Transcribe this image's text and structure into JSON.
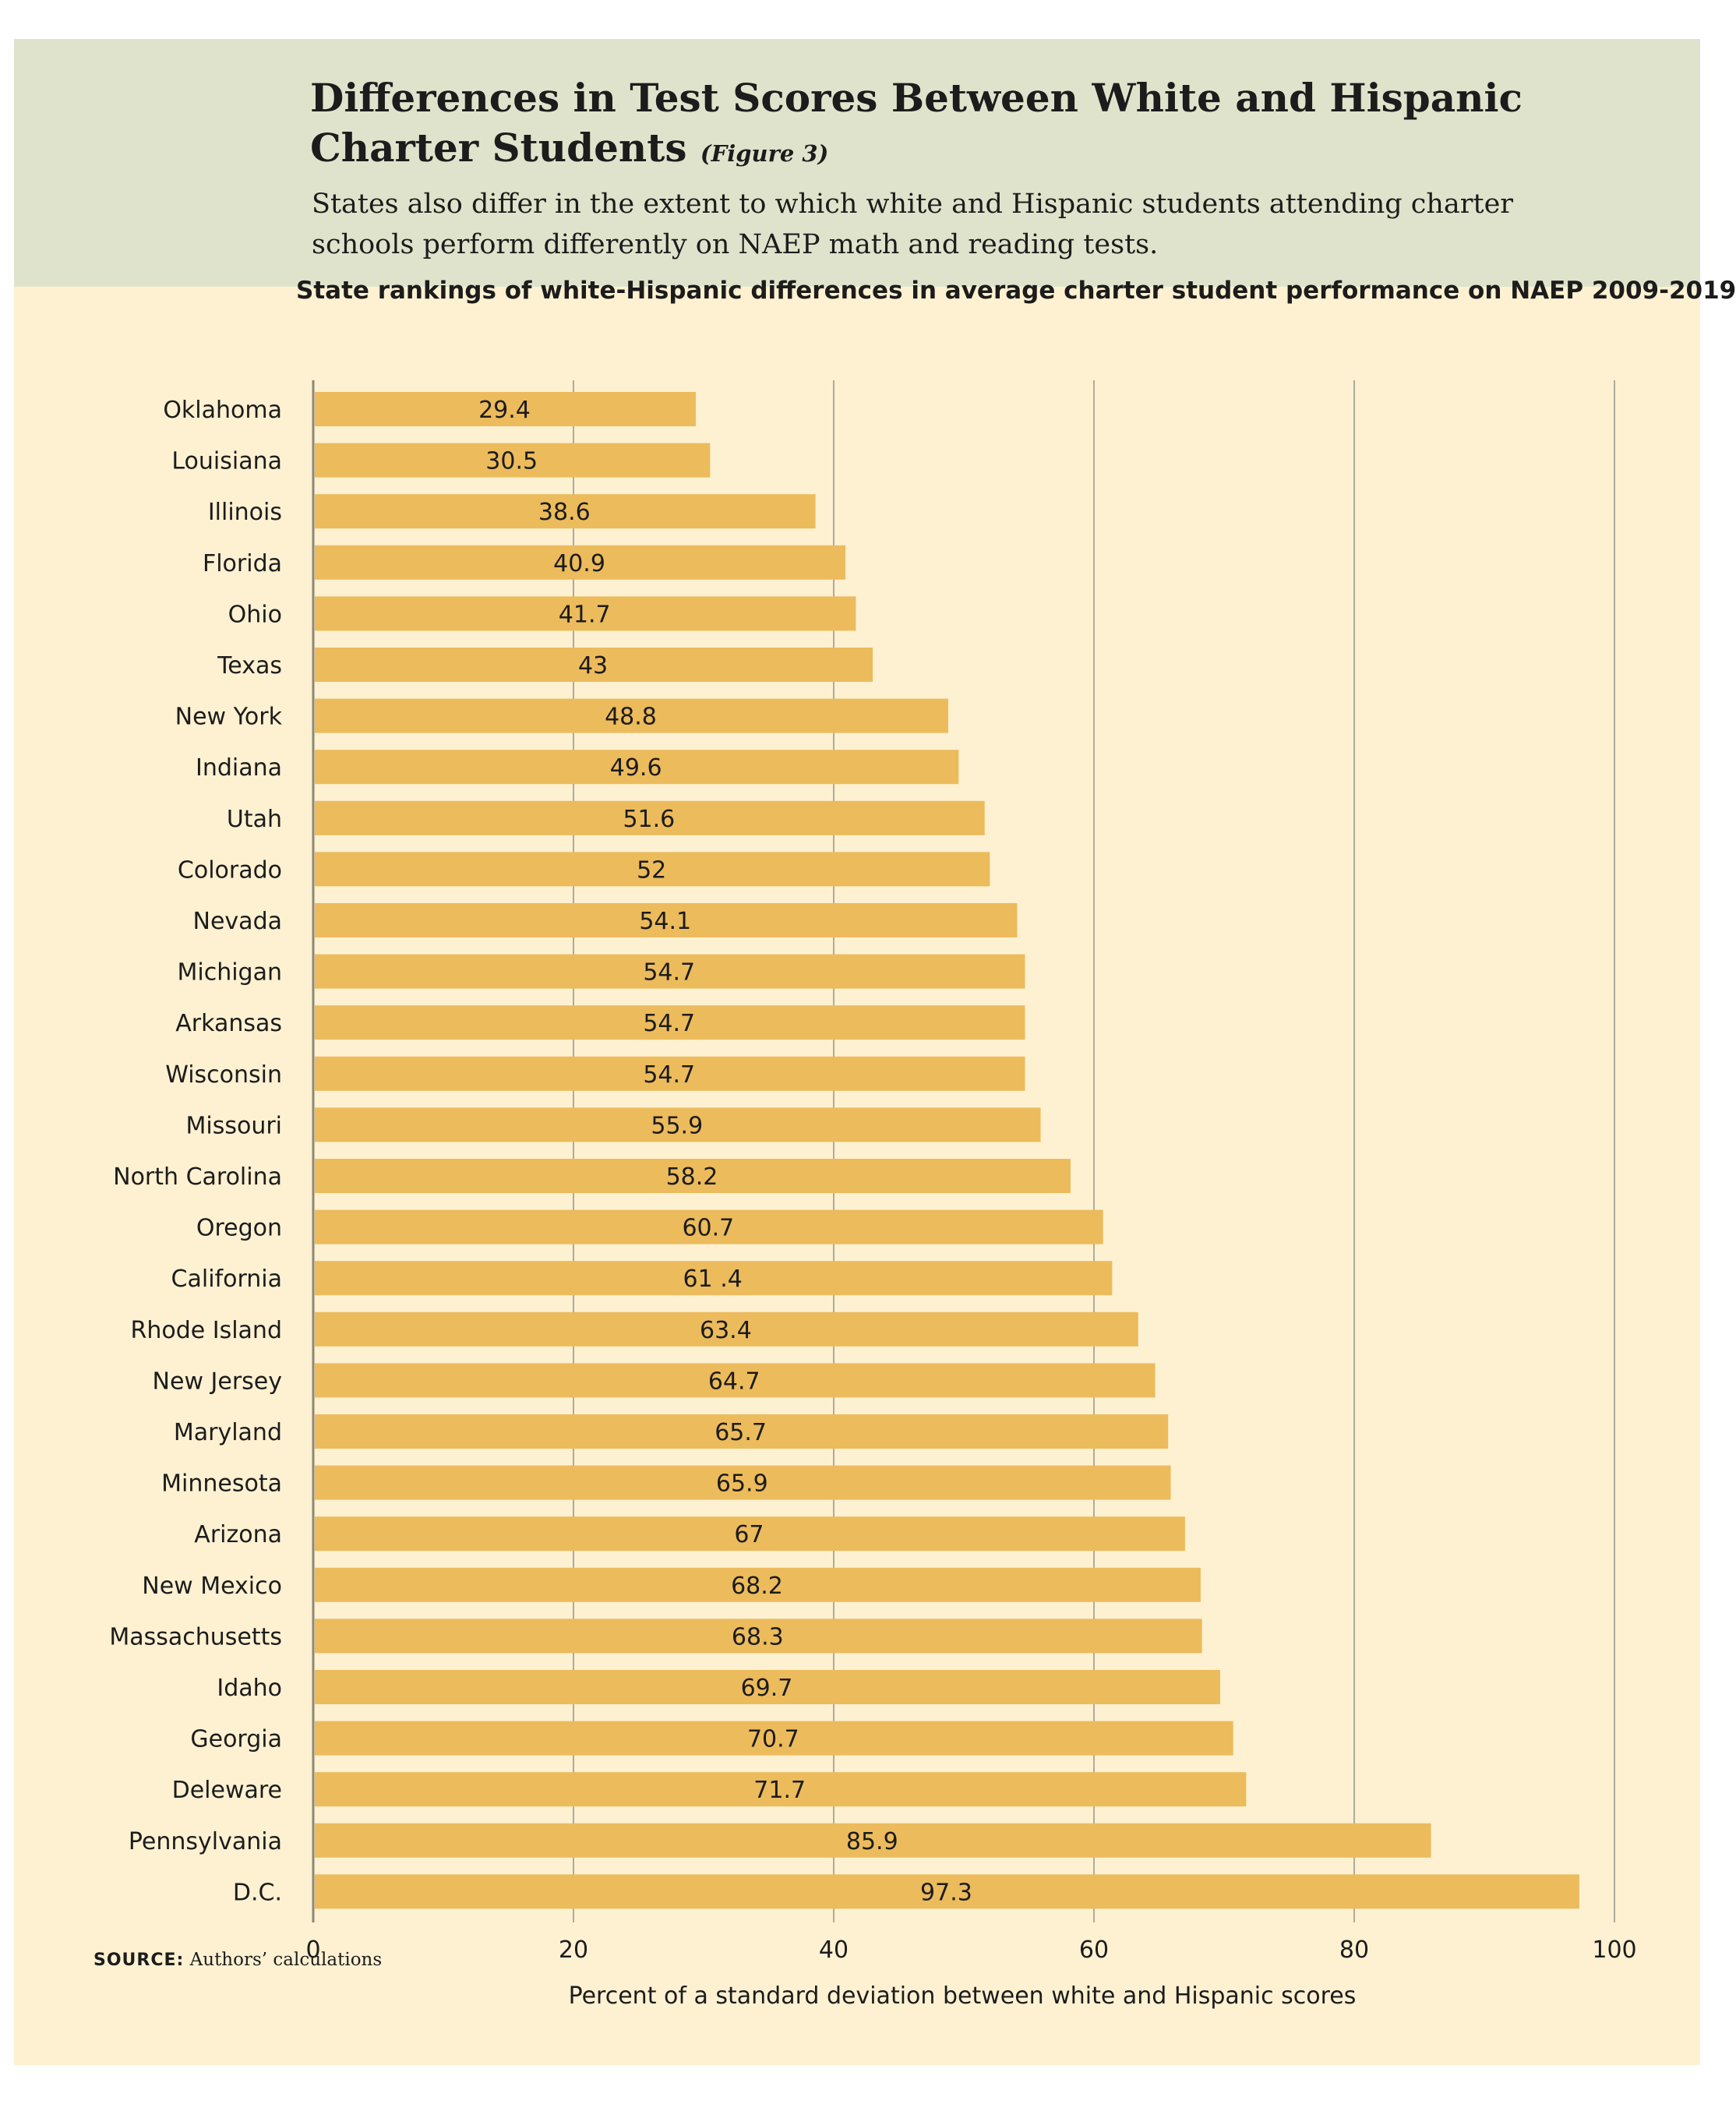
{
  "header": {
    "title": "Differences in Test Scores Between White and Hispanic Charter Students",
    "figure_label": "(Figure 3)",
    "subtitle": "States also differ in the extent to which white and Hispanic students attending charter schools perform differently on NAEP math and reading tests."
  },
  "colors": {
    "bar": "#ecbb5c",
    "header_bg": "#e0e3cc",
    "card_bg": "#fdf1d1",
    "grid": "#b0aa98"
  },
  "source": {
    "label": "SOURCE:",
    "text": "Authors’ calculations"
  },
  "chart_data": {
    "type": "bar",
    "orientation": "horizontal",
    "title": "State rankings of white-Hispanic differences in average charter student performance on NAEP 2009-2019",
    "xlabel": "Percent of a standard deviation between white and Hispanic scores",
    "ylabel": "",
    "xlim": [
      0,
      100
    ],
    "xticks": [
      0,
      20,
      40,
      60,
      80,
      100
    ],
    "grid": true,
    "categories": [
      "Oklahoma",
      "Louisiana",
      "Illinois",
      "Florida",
      "Ohio",
      "Texas",
      "New York",
      "Indiana",
      "Utah",
      "Colorado",
      "Nevada",
      "Michigan",
      "Arkansas",
      "Wisconsin",
      "Missouri",
      "North Carolina",
      "Oregon",
      "California",
      "Rhode Island",
      "New Jersey",
      "Maryland",
      "Minnesota",
      "Arizona",
      "New Mexico",
      "Massachusetts",
      "Idaho",
      "Georgia",
      "Deleware",
      "Pennsylvania",
      "D.C."
    ],
    "values": [
      29.4,
      30.5,
      38.6,
      40.9,
      41.7,
      43,
      48.8,
      49.6,
      51.6,
      52,
      54.1,
      54.7,
      54.7,
      54.7,
      55.9,
      58.2,
      60.7,
      61.4,
      63.4,
      64.7,
      65.7,
      65.9,
      67,
      68.2,
      68.3,
      69.7,
      70.7,
      71.7,
      85.9,
      97.3
    ],
    "value_labels": [
      "29.4",
      "30.5",
      "38.6",
      "40.9",
      "41.7",
      "43",
      "48.8",
      "49.6",
      "51.6",
      "52",
      "54.1",
      "54.7",
      "54.7",
      "54.7",
      "55.9",
      "58.2",
      "60.7",
      "61 .4",
      "63.4",
      "64.7",
      "65.7",
      "65.9",
      "67",
      "68.2",
      "68.3",
      "69.7",
      "70.7",
      "71.7",
      "85.9",
      "97.3"
    ]
  }
}
